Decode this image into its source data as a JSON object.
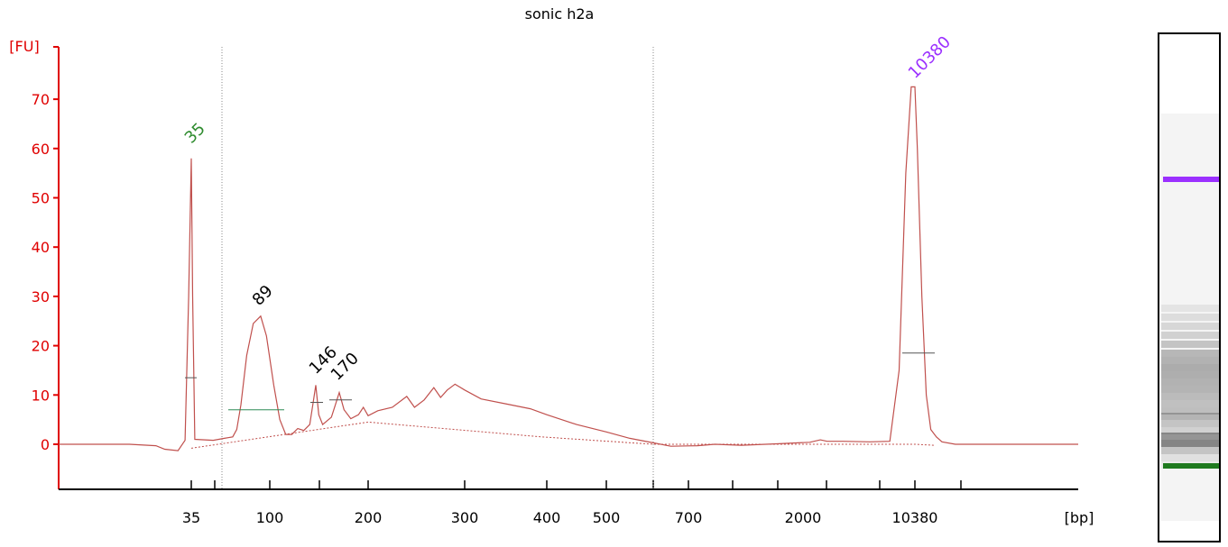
{
  "chart_data": {
    "type": "line",
    "title": "sonic h2a",
    "ylabel": "[FU]",
    "xlabel": "[bp]",
    "ylim": [
      -9,
      75
    ],
    "y_ticks": [
      0,
      10,
      20,
      30,
      40,
      50,
      60,
      70
    ],
    "x_tick_labels": [
      "35",
      "100",
      "200",
      "300",
      "400",
      "500",
      "700",
      "2000",
      "10380"
    ],
    "grid": false,
    "series": [
      {
        "color": "#c0504d",
        "x_axis_units": "bp",
        "points": [
          [
            20,
            0
          ],
          [
            28,
            0
          ],
          [
            31,
            -0.3
          ],
          [
            32,
            -1.0
          ],
          [
            33.5,
            -1.3
          ],
          [
            34.3,
            0.8
          ],
          [
            34.7,
            30
          ],
          [
            35,
            58
          ],
          [
            35.3,
            30
          ],
          [
            35.8,
            1
          ],
          [
            40,
            0.8
          ],
          [
            45,
            1.2
          ],
          [
            55,
            1.5
          ],
          [
            60,
            3
          ],
          [
            65,
            8
          ],
          [
            72,
            18
          ],
          [
            80,
            24.5
          ],
          [
            89,
            26
          ],
          [
            96,
            22
          ],
          [
            104,
            12
          ],
          [
            110,
            5
          ],
          [
            116,
            2
          ],
          [
            122,
            2
          ],
          [
            128,
            3.2
          ],
          [
            134,
            2.8
          ],
          [
            140,
            4
          ],
          [
            143,
            8
          ],
          [
            146,
            12
          ],
          [
            149,
            6
          ],
          [
            153,
            4
          ],
          [
            162,
            5.5
          ],
          [
            166,
            8
          ],
          [
            170,
            10.5
          ],
          [
            175,
            7
          ],
          [
            182,
            5.2
          ],
          [
            190,
            6
          ],
          [
            195,
            7.5
          ],
          [
            200,
            5.8
          ],
          [
            210,
            6.8
          ],
          [
            225,
            7.5
          ],
          [
            240,
            9.7
          ],
          [
            248,
            7.5
          ],
          [
            258,
            9
          ],
          [
            268,
            11.5
          ],
          [
            275,
            9.5
          ],
          [
            282,
            11
          ],
          [
            290,
            12.2
          ],
          [
            300,
            11
          ],
          [
            320,
            9.2
          ],
          [
            350,
            8.2
          ],
          [
            380,
            7.2
          ],
          [
            400,
            6
          ],
          [
            450,
            4
          ],
          [
            500,
            2.5
          ],
          [
            550,
            1.2
          ],
          [
            600,
            0.3
          ],
          [
            650,
            -0.4
          ],
          [
            800,
            -0.3
          ],
          [
            1000,
            0
          ],
          [
            1300,
            -0.2
          ],
          [
            1700,
            0.1
          ],
          [
            2500,
            0.4
          ],
          [
            3300,
            0.9
          ],
          [
            3800,
            0.6
          ],
          [
            5000,
            0.6
          ],
          [
            7000,
            0.5
          ],
          [
            8500,
            0.6
          ],
          [
            9200,
            15
          ],
          [
            9700,
            55
          ],
          [
            10100,
            72.5
          ],
          [
            10380,
            72.5
          ],
          [
            10600,
            60
          ],
          [
            11000,
            30
          ],
          [
            11400,
            10
          ],
          [
            11800,
            3
          ],
          [
            12300,
            1.5
          ],
          [
            12800,
            0.5
          ],
          [
            14000,
            0
          ],
          [
            17000,
            0
          ],
          [
            25000,
            0
          ]
        ]
      }
    ],
    "peaks": [
      {
        "label": "35",
        "value": 58,
        "color": "#2e8b2e"
      },
      {
        "label": "89",
        "value": 26,
        "color": "#000000"
      },
      {
        "label": "146",
        "value": 12,
        "color": "#000000"
      },
      {
        "label": "170",
        "value": 10.5,
        "color": "#000000"
      },
      {
        "label": "10380",
        "value": 72.5,
        "color": "#9b30ff"
      }
    ],
    "gel_lane": {
      "upper_marker_color": "#9b30ff",
      "lower_marker_color": "#1f7a1f"
    },
    "colors": {
      "axis_y": "#e00000",
      "trace": "#c0504d",
      "region": "#888888"
    }
  }
}
